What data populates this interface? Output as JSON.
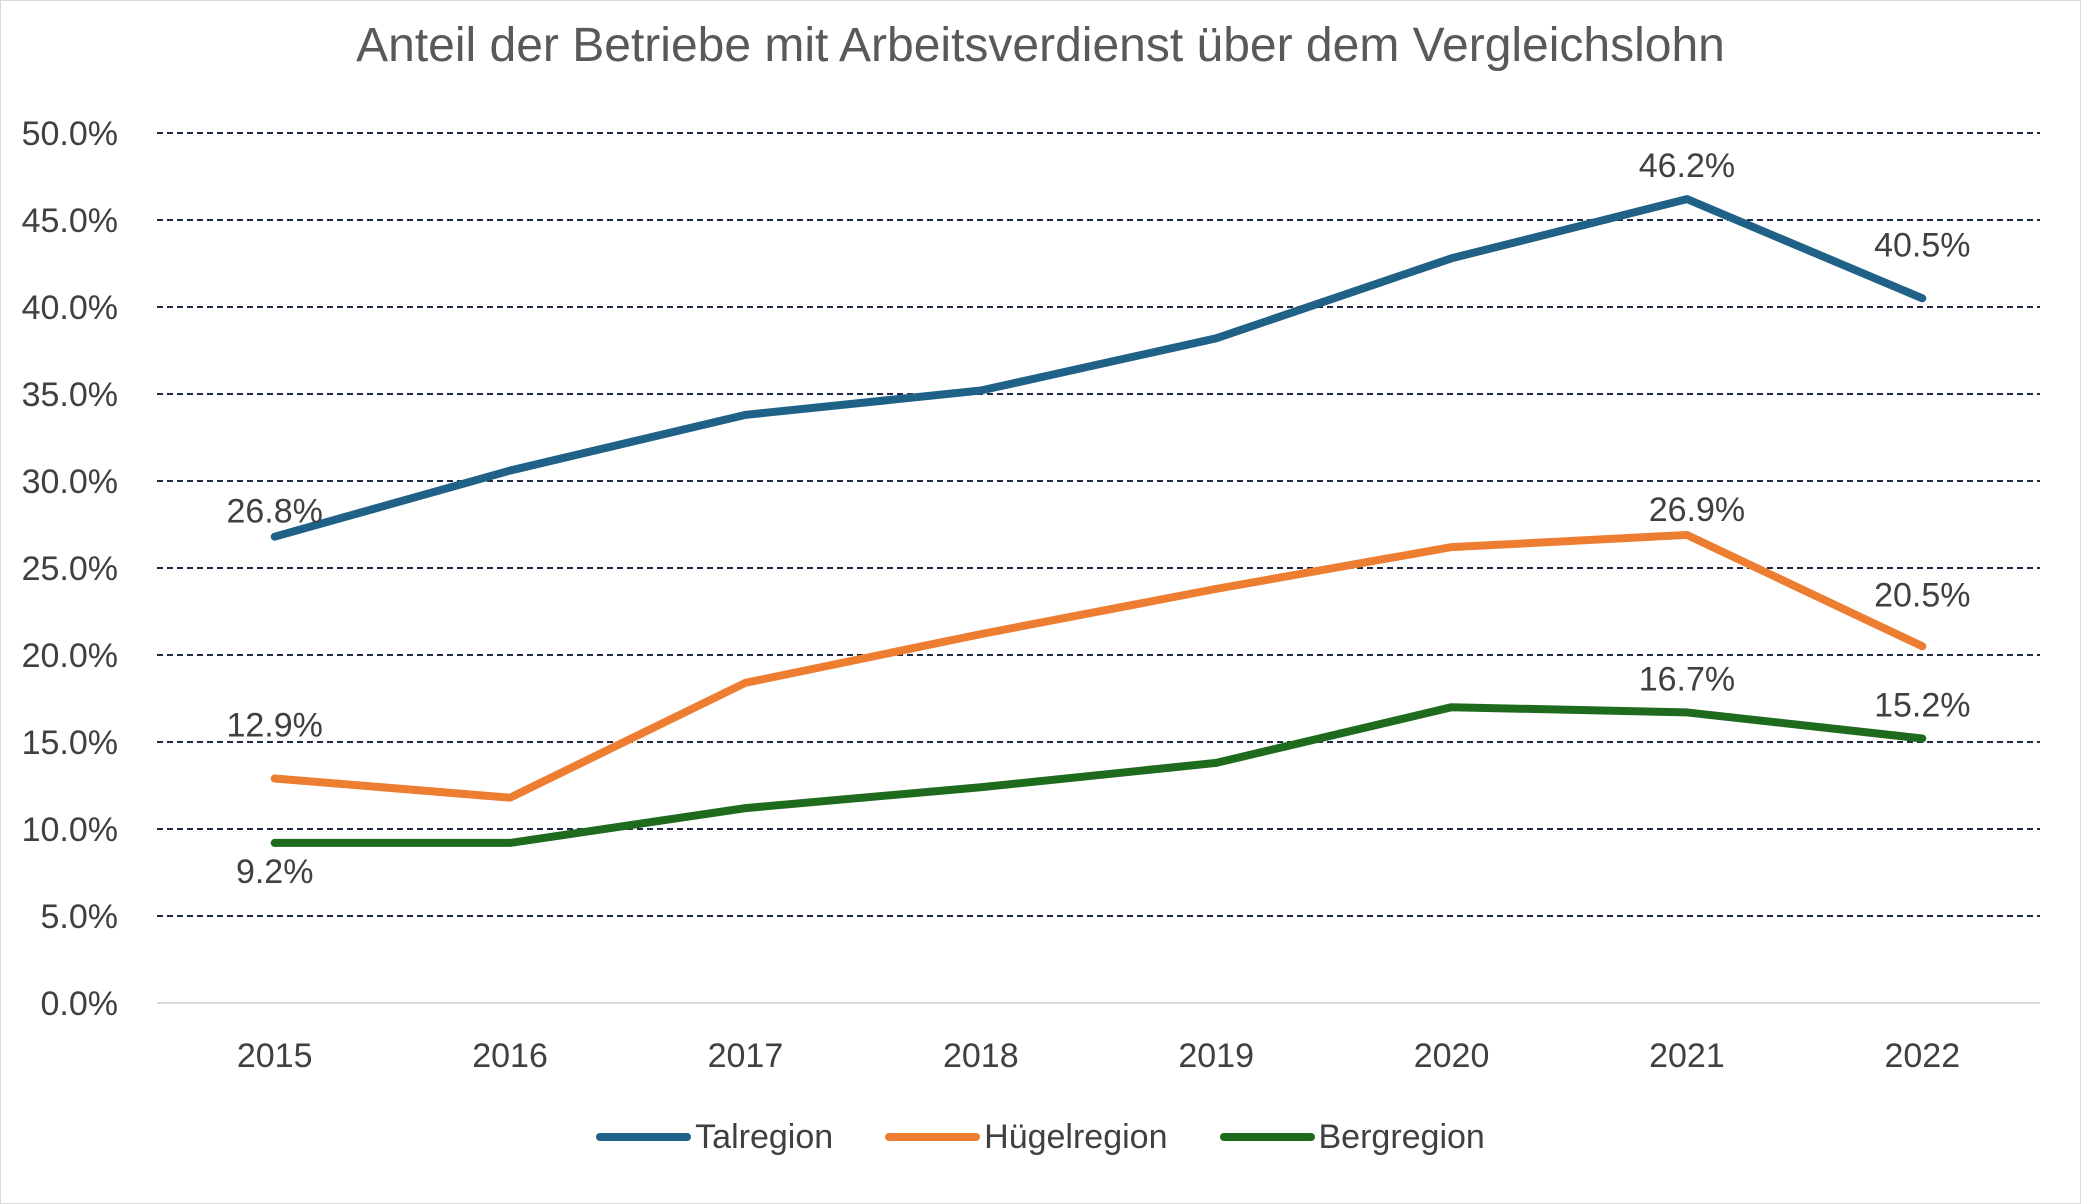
{
  "chart_data": {
    "type": "line",
    "title": "Anteil der Betriebe mit Arbeitsverdienst über dem Vergleichslohn",
    "xlabel": "",
    "ylabel": "",
    "categories": [
      "2015",
      "2016",
      "2017",
      "2018",
      "2019",
      "2020",
      "2021",
      "2022"
    ],
    "ylim": [
      0,
      50
    ],
    "ytick_labels": [
      "0.0%",
      "5.0%",
      "10.0%",
      "15.0%",
      "20.0%",
      "25.0%",
      "30.0%",
      "35.0%",
      "40.0%",
      "45.0%",
      "50.0%"
    ],
    "grid": "horizontal dashed",
    "legend_position": "bottom",
    "series": [
      {
        "name": "Talregion",
        "color": "#1f6187",
        "values": [
          26.8,
          30.6,
          33.8,
          35.2,
          38.2,
          42.8,
          46.2,
          40.5
        ],
        "data_labels": [
          {
            "index": 0,
            "text": "26.8%"
          },
          {
            "index": 6,
            "text": "46.2%"
          },
          {
            "index": 7,
            "text": "40.5%"
          }
        ]
      },
      {
        "name": "Hügelregion",
        "color": "#ed7d31",
        "values": [
          12.9,
          11.8,
          18.4,
          21.2,
          23.8,
          26.2,
          26.9,
          20.5
        ],
        "data_labels": [
          {
            "index": 0,
            "text": "12.9%"
          },
          {
            "index": 6,
            "text": "26.9%"
          },
          {
            "index": 7,
            "text": "20.5%"
          }
        ]
      },
      {
        "name": "Bergregion",
        "color": "#1e6b1e",
        "values": [
          9.2,
          9.2,
          11.2,
          12.4,
          13.8,
          17.0,
          16.7,
          15.2
        ],
        "data_labels": [
          {
            "index": 0,
            "text": "9.2%"
          },
          {
            "index": 6,
            "text": "16.7%"
          },
          {
            "index": 7,
            "text": "15.2%"
          }
        ]
      }
    ]
  }
}
